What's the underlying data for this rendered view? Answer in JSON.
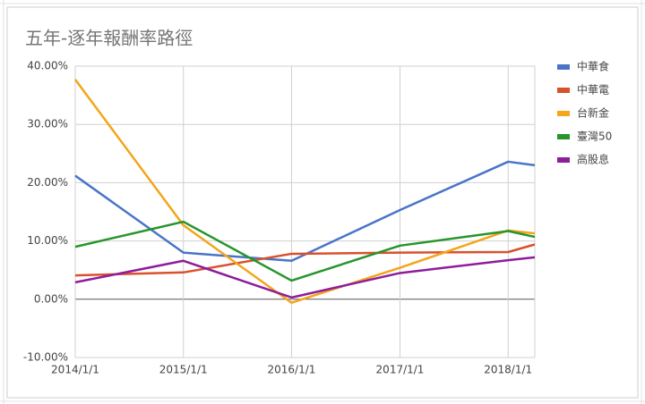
{
  "chart_data": {
    "type": "line",
    "title": "五年-逐年報酬率路徑",
    "x": [
      "2014/1/1",
      "2015/1/1",
      "2016/1/1",
      "2017/1/1",
      "2018/1/1",
      "2018/4/1"
    ],
    "xlim": [
      "2014/1/1",
      "2018/4/1"
    ],
    "xticks": [
      "2014/1/1",
      "2015/1/1",
      "2016/1/1",
      "2017/1/1",
      "2018/1/1"
    ],
    "ylim": [
      -10,
      40
    ],
    "yticks": [
      {
        "value": -10,
        "label": "-10.00%"
      },
      {
        "value": 0,
        "label": "0.00%"
      },
      {
        "value": 10,
        "label": "10.00%"
      },
      {
        "value": 20,
        "label": "20.00%"
      },
      {
        "value": 30,
        "label": "30.00%"
      },
      {
        "value": 40,
        "label": "40.00%"
      }
    ],
    "grid": true,
    "legend": "right",
    "series": [
      {
        "name": "中華食",
        "color": "#4a74c8",
        "values": [
          21.2,
          8.0,
          6.6,
          15.3,
          23.6,
          23.0
        ]
      },
      {
        "name": "中華電",
        "color": "#d9512c",
        "values": [
          4.1,
          4.6,
          7.8,
          8.0,
          8.1,
          9.4
        ]
      },
      {
        "name": "台新金",
        "color": "#f4a519",
        "values": [
          37.7,
          12.7,
          -0.6,
          5.4,
          11.8,
          11.3
        ]
      },
      {
        "name": "臺灣50",
        "color": "#27952b",
        "values": [
          9.0,
          13.3,
          3.2,
          9.2,
          11.7,
          10.7
        ]
      },
      {
        "name": "高股息",
        "color": "#8e1d9b",
        "values": [
          2.9,
          6.6,
          0.3,
          4.5,
          6.7,
          7.2
        ]
      }
    ]
  }
}
